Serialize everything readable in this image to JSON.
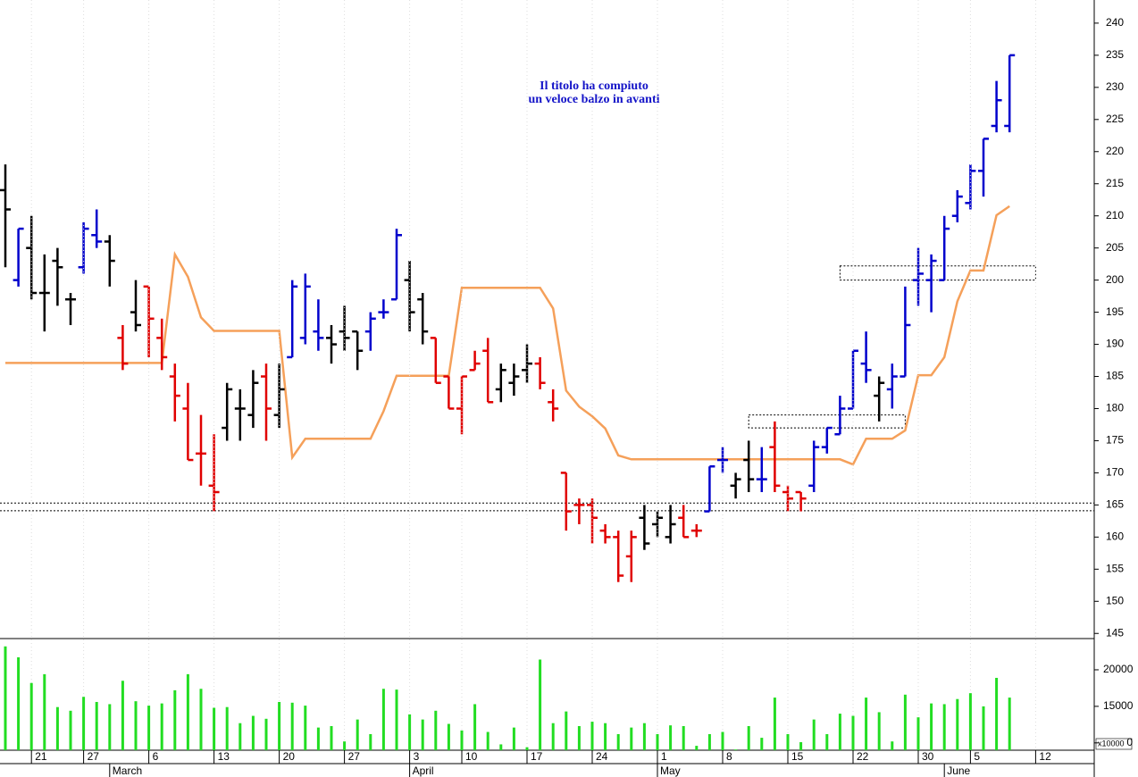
{
  "chart_data": [
    {
      "type": "ohlc",
      "open": [
        214,
        200,
        205,
        198,
        203,
        197,
        202,
        207,
        206,
        191,
        195,
        199,
        191,
        185,
        180,
        173,
        168,
        177,
        180,
        179,
        185,
        179,
        188,
        191,
        192,
        191,
        192,
        192,
        192,
        195,
        197,
        200,
        197,
        191,
        185,
        180,
        186,
        189,
        183,
        184,
        186,
        187,
        181,
        170,
        165,
        165,
        161,
        160,
        157,
        163,
        162,
        160,
        163,
        161,
        164,
        172,
        168,
        172,
        169,
        174,
        167,
        167,
        168,
        174,
        176,
        180,
        187,
        182,
        183,
        185,
        200,
        200,
        200,
        210,
        212,
        217,
        224,
        224
      ],
      "high": [
        218,
        208,
        210,
        204,
        205,
        198,
        209,
        211,
        207,
        193,
        200,
        199,
        194,
        187,
        184,
        179,
        176,
        184,
        183,
        186,
        187,
        187,
        200,
        201,
        197,
        193,
        196,
        192,
        195,
        197,
        208,
        203,
        198,
        191,
        185,
        185,
        189,
        191,
        187,
        187,
        190,
        188,
        183,
        170,
        166,
        166,
        162,
        161,
        161,
        165,
        164,
        165,
        165,
        162,
        171,
        174,
        170,
        175,
        174,
        178,
        168,
        167,
        175,
        177,
        182,
        189,
        192,
        185,
        187,
        199,
        205,
        204,
        210,
        214,
        218,
        222,
        231,
        235
      ],
      "low": [
        202,
        199,
        197,
        192,
        196,
        193,
        201,
        205,
        199,
        186,
        192,
        188,
        186,
        178,
        172,
        168,
        164,
        175,
        175,
        177,
        175,
        177,
        188,
        190,
        189,
        187,
        189,
        186,
        189,
        194,
        197,
        192,
        190,
        184,
        180,
        176,
        186,
        181,
        181,
        182,
        184,
        183,
        178,
        161,
        162,
        159,
        159,
        153,
        153,
        158,
        160,
        159,
        160,
        160,
        164,
        170,
        166,
        167,
        167,
        167,
        164,
        164,
        167,
        173,
        176,
        180,
        184,
        178,
        180,
        185,
        196,
        195,
        200,
        209,
        211,
        213,
        223,
        223
      ],
      "close": [
        211,
        208,
        198,
        198,
        202,
        197,
        208,
        206,
        203,
        187,
        193,
        194,
        188,
        182,
        172,
        173,
        167,
        183,
        180,
        184,
        180,
        183,
        199,
        199,
        191,
        190,
        191,
        189,
        194,
        195,
        207,
        195,
        192,
        184,
        180,
        185,
        187,
        181,
        186,
        185,
        187,
        184,
        180,
        164,
        165,
        163,
        160,
        154,
        160,
        159,
        163,
        162,
        160,
        161,
        171,
        172,
        169,
        169,
        169,
        168,
        166,
        166,
        174,
        177,
        180,
        189,
        186,
        184,
        185,
        193,
        201,
        203,
        208,
        213,
        217,
        222,
        228,
        235
      ],
      "trend": [
        "flat",
        "up",
        "flat",
        "flat",
        "flat",
        "flat",
        "up",
        "up",
        "flat",
        "down",
        "flat",
        "down",
        "down",
        "down",
        "down",
        "down",
        "down",
        "flat",
        "flat",
        "flat",
        "down",
        "flat",
        "up",
        "up",
        "up",
        "flat",
        "flat",
        "flat",
        "up",
        "up",
        "up",
        "flat",
        "flat",
        "down",
        "down",
        "down",
        "down",
        "down",
        "flat",
        "flat",
        "flat",
        "down",
        "down",
        "down",
        "down",
        "down",
        "down",
        "down",
        "down",
        "flat",
        "flat",
        "flat",
        "down",
        "down",
        "up",
        "up",
        "flat",
        "flat",
        "up",
        "down",
        "down",
        "down",
        "up",
        "up",
        "up",
        "up",
        "up",
        "flat",
        "up",
        "up",
        "up",
        "up",
        "up",
        "up",
        "up",
        "up",
        "up",
        "up"
      ],
      "palette": {
        "up": "#0000cc",
        "down": "#e00000",
        "flat": "#000000"
      },
      "trail": [
        187.1,
        187.1,
        187.1,
        187.1,
        187.1,
        187.1,
        187.1,
        187.1,
        187.1,
        187.1,
        187.1,
        187.1,
        187.1,
        204,
        200.5,
        194.2,
        192.1,
        192.1,
        192.1,
        192.1,
        192.1,
        192.1,
        172.4,
        175.3,
        175.3,
        175.3,
        175.3,
        175.3,
        175.3,
        179.6,
        185.1,
        185.1,
        185.1,
        185.1,
        185.1,
        198.8,
        198.8,
        198.8,
        198.8,
        198.8,
        198.8,
        198.8,
        195.6,
        182.8,
        180.3,
        178.8,
        176.9,
        172.7,
        172.1,
        172.1,
        172.1,
        172.1,
        172.1,
        172.1,
        172.1,
        172.1,
        172.1,
        172.1,
        172.1,
        172.1,
        172.1,
        172.1,
        172.1,
        172.1,
        172.1,
        171.3,
        175.3,
        175.3,
        175.3,
        176.6,
        185.2,
        185.2,
        188,
        196.7,
        201.5,
        201.5,
        210.1,
        211.5
      ],
      "trail_color": "#f5a05a",
      "hlines": [
        165.3,
        164.1
      ],
      "boxes": [
        {
          "from": 64,
          "to": 79,
          "low": 200,
          "high": 202.2
        },
        {
          "from": 57,
          "to": 69,
          "low": 177,
          "high": 179
        }
      ],
      "annotation": [
        "Il titolo ha compiuto",
        "un veloce balzo in avanti"
      ],
      "ylim": [
        144.2,
        243.6
      ],
      "yticks": [
        145,
        150,
        155,
        160,
        165,
        170,
        175,
        180,
        185,
        190,
        195,
        200,
        205,
        210,
        215,
        220,
        225,
        230,
        235,
        240
      ]
    },
    {
      "type": "bar",
      "categories": [
        null,
        null,
        "21",
        null,
        null,
        null,
        "27",
        null,
        null,
        null,
        null,
        "6",
        null,
        null,
        null,
        null,
        "13",
        null,
        null,
        null,
        null,
        "20",
        null,
        null,
        null,
        null,
        "27",
        null,
        null,
        null,
        null,
        "3",
        null,
        null,
        null,
        "10",
        null,
        null,
        null,
        null,
        "17",
        null,
        null,
        null,
        null,
        "24",
        null,
        null,
        null,
        null,
        "1",
        null,
        null,
        null,
        null,
        "8",
        null,
        null,
        null,
        null,
        "15",
        null,
        null,
        null,
        null,
        "22",
        null,
        null,
        null,
        null,
        "30",
        null,
        null,
        null,
        "5",
        null,
        null,
        null,
        null,
        "12",
        null,
        null,
        null,
        null
      ],
      "months": [
        null,
        null,
        null,
        null,
        null,
        null,
        null,
        null,
        "March",
        null,
        null,
        null,
        null,
        null,
        null,
        null,
        null,
        null,
        null,
        null,
        null,
        null,
        null,
        null,
        null,
        null,
        null,
        null,
        null,
        null,
        null,
        "April",
        null,
        null,
        null,
        null,
        null,
        null,
        null,
        null,
        null,
        null,
        null,
        null,
        null,
        null,
        null,
        null,
        null,
        null,
        "May",
        null,
        null,
        null,
        null,
        null,
        null,
        null,
        null,
        null,
        null,
        null,
        null,
        null,
        null,
        null,
        null,
        null,
        null,
        null,
        null,
        null,
        "June",
        null,
        null,
        null,
        null,
        null,
        null,
        null,
        null,
        null,
        null,
        null
      ],
      "values": [
        23200,
        21700,
        18200,
        19400,
        14900,
        14400,
        16300,
        15600,
        15300,
        18500,
        15700,
        15100,
        15400,
        17200,
        19400,
        17400,
        14800,
        14900,
        12700,
        13700,
        13300,
        15600,
        15500,
        15100,
        12100,
        12300,
        10200,
        13200,
        11200,
        17400,
        17300,
        13900,
        13200,
        14400,
        12600,
        11700,
        15300,
        11500,
        9800,
        12100,
        9400,
        21400,
        12700,
        14300,
        12300,
        12900,
        12700,
        11200,
        12100,
        12700,
        11200,
        12400,
        12300,
        9600,
        11200,
        11500,
        9100,
        12300,
        10700,
        16200,
        11200,
        10100,
        13200,
        11200,
        14000,
        13700,
        16200,
        14200,
        10200,
        16600,
        13500,
        15400,
        15300,
        16000,
        16800,
        15000,
        18900,
        16200,
        null,
        null,
        null,
        null,
        null,
        null
      ],
      "color": "#22dd22",
      "ylim": [
        9000,
        24150
      ],
      "yticks": [
        {
          "value": 10000,
          "label": "0"
        },
        15000,
        20000
      ],
      "unit_label": "x10000"
    }
  ]
}
